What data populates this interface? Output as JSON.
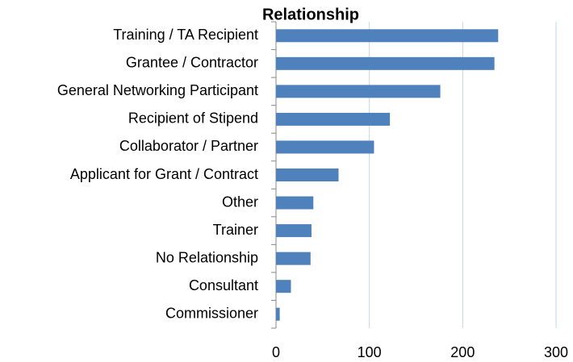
{
  "chart_data": {
    "type": "bar",
    "orientation": "horizontal",
    "title": "Relationship",
    "categories": [
      "Training / TA Recipient",
      "Grantee / Contractor",
      "General Networking Participant",
      "Recipient of Stipend",
      "Collaborator / Partner",
      "Applicant for Grant / Contract",
      "Other",
      "Trainer",
      "No Relationship",
      "Consultant",
      "Commissioner"
    ],
    "values": [
      238,
      234,
      176,
      122,
      105,
      67,
      40,
      38,
      37,
      16,
      4
    ],
    "color": "#4f81bd",
    "xlim": [
      0,
      300
    ],
    "xticks": [
      0,
      100,
      200,
      300
    ],
    "grid": true
  }
}
